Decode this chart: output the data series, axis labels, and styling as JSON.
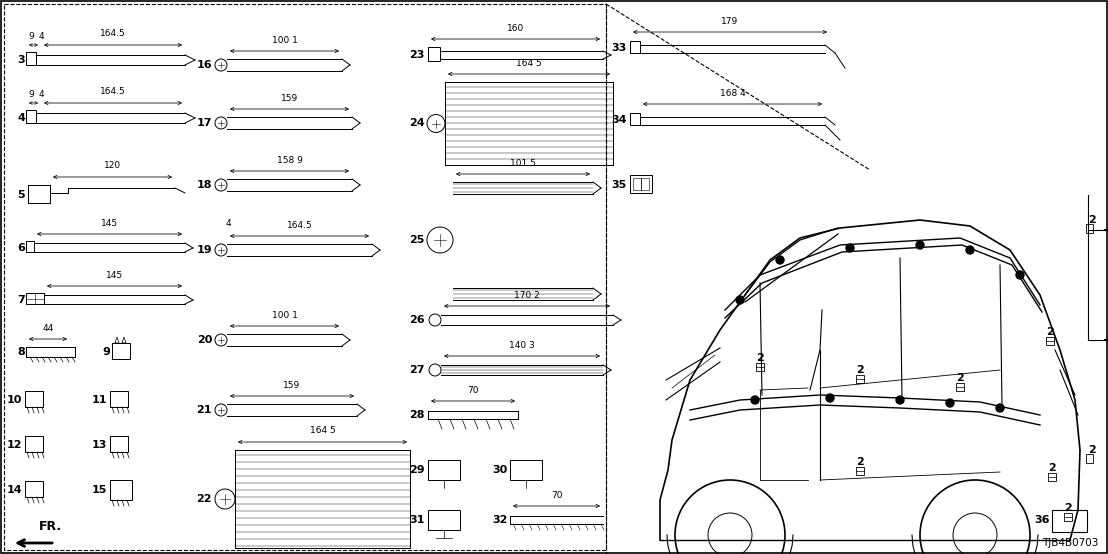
{
  "bg_color": "#ffffff",
  "text_color": "#000000",
  "diagram_code": "TJB4B0703",
  "fig_width": 11.08,
  "fig_height": 5.54,
  "dpi": 100,
  "lw": 0.7,
  "fs": 6.5,
  "fs_num": 8.0
}
